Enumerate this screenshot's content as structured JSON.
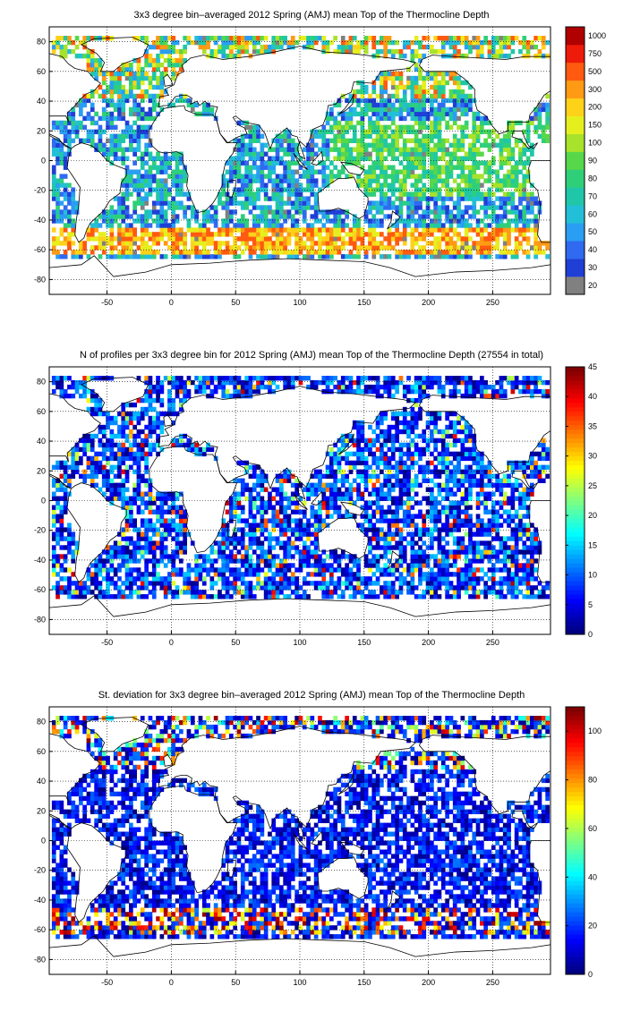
{
  "panels": [
    {
      "title": "3x3 degree bin–averaged 2012 Spring (AMJ) mean Top of the Thermocline Depth",
      "colorbar": {
        "kind": "discrete",
        "labels": [
          "20",
          "30",
          "40",
          "50",
          "60",
          "70",
          "80",
          "90",
          "100",
          "150",
          "200",
          "300",
          "500",
          "750",
          "1000"
        ],
        "colors": [
          "#808080",
          "#1f3fd6",
          "#2f6af0",
          "#2a9ef2",
          "#23bfd8",
          "#1fc7a8",
          "#2fcf7a",
          "#57d84a",
          "#a8e22a",
          "#e6ef1e",
          "#ffd21a",
          "#ff9a14",
          "#ff5a10",
          "#ee1a0a",
          "#b00000"
        ]
      },
      "chart_data": {
        "type": "heatmap",
        "title": "3x3 degree bin–averaged 2012 Spring (AMJ) mean Top of the Thermocline Depth",
        "xticks": [
          -50,
          0,
          50,
          100,
          150,
          200,
          250
        ],
        "yticks": [
          80,
          60,
          40,
          20,
          0,
          -20,
          -40,
          -60,
          -80
        ],
        "xlim": [
          -95,
          295
        ],
        "ylim": [
          -90,
          90
        ],
        "bin_deg": 3
      }
    },
    {
      "title": "N of profiles per 3x3 degree bin for 2012 Spring (AMJ) mean Top of the Thermocline Depth  (27554 in total)",
      "colorbar": {
        "kind": "continuous",
        "labels": [
          "45",
          "40",
          "35",
          "30",
          "25",
          "20",
          "15",
          "10",
          "5",
          "0"
        ],
        "min": 0,
        "max": 45
      },
      "chart_data": {
        "type": "heatmap",
        "title": "N of profiles per 3x3 degree bin for 2012 Spring (AMJ) mean Top of the Thermocline Depth  (27554 in total)",
        "xticks": [
          -50,
          0,
          50,
          100,
          150,
          200,
          250
        ],
        "yticks": [
          80,
          60,
          40,
          20,
          0,
          -20,
          -40,
          -60,
          -80
        ],
        "xlim": [
          -95,
          295
        ],
        "ylim": [
          -90,
          90
        ],
        "colorbar_range": [
          0,
          45
        ],
        "total_profiles": 27554
      }
    },
    {
      "title": "St. deviation for 3x3 degree bin–averaged 2012 Spring (AMJ) mean Top of the Thermocline Depth",
      "colorbar": {
        "kind": "continuous",
        "labels": [
          "100",
          "80",
          "60",
          "40",
          "20",
          "0"
        ],
        "min": 0,
        "max": 110
      },
      "chart_data": {
        "type": "heatmap",
        "title": "St. deviation for 3x3 degree bin–averaged 2012 Spring (AMJ) mean Top of the Thermocline Depth",
        "xticks": [
          -50,
          0,
          50,
          100,
          150,
          200,
          250
        ],
        "yticks": [
          80,
          60,
          40,
          20,
          0,
          -20,
          -40,
          -60,
          -80
        ],
        "xlim": [
          -95,
          295
        ],
        "ylim": [
          -90,
          90
        ],
        "colorbar_range": [
          0,
          110
        ]
      }
    }
  ],
  "xtick_labels": [
    "-50",
    "0",
    "50",
    "100",
    "150",
    "200",
    "250"
  ],
  "ytick_labels": [
    "80",
    "60",
    "40",
    "20",
    "0",
    "-20",
    "-40",
    "-60",
    "-80"
  ]
}
